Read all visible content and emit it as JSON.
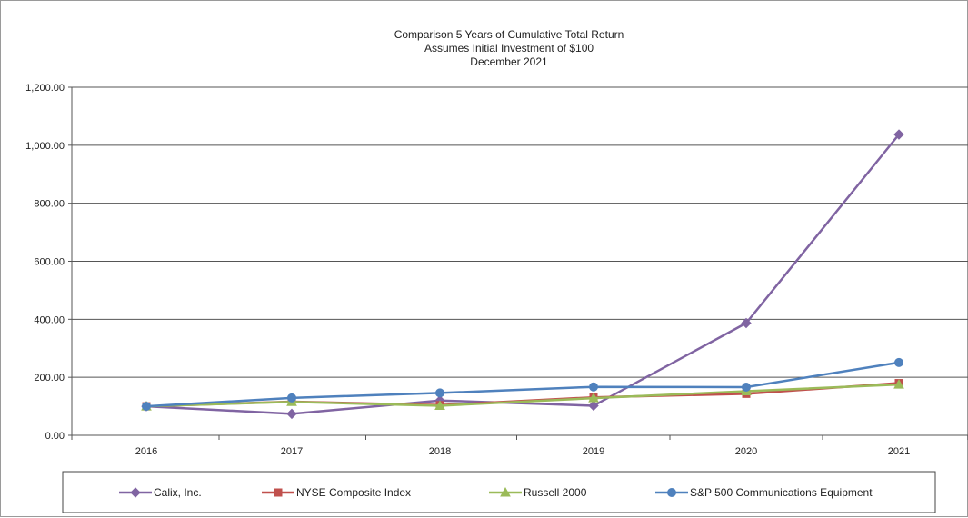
{
  "chart_data": {
    "type": "line",
    "title": [
      "Comparison 5 Years of Cumulative Total Return",
      "Assumes Initial Investment of $100",
      "December 2021"
    ],
    "categories": [
      "2016",
      "2017",
      "2018",
      "2019",
      "2020",
      "2021"
    ],
    "ylim": [
      0,
      1200
    ],
    "yticks": [
      0,
      200,
      400,
      600,
      800,
      1000,
      1200
    ],
    "ytick_labels": [
      "0.00",
      "200.00",
      "400.00",
      "600.00",
      "800.00",
      "1,000.00",
      "1,200.00"
    ],
    "grid": true,
    "legend_position": "bottom",
    "series": [
      {
        "name": "Calix, Inc.",
        "color": "#8064a2",
        "marker": "diamond",
        "values": [
          100,
          74,
          120,
          102,
          387,
          1037
        ]
      },
      {
        "name": "NYSE Composite Index",
        "color": "#c0504d",
        "marker": "square",
        "values": [
          100,
          116,
          104,
          131,
          143,
          180
        ]
      },
      {
        "name": "Russell 2000",
        "color": "#9bbb59",
        "marker": "triangle",
        "values": [
          100,
          115,
          102,
          128,
          152,
          175
        ]
      },
      {
        "name": "S&P 500 Communications Equipment",
        "color": "#4f81bd",
        "marker": "circle",
        "values": [
          100,
          129,
          146,
          167,
          166,
          251
        ]
      }
    ]
  }
}
